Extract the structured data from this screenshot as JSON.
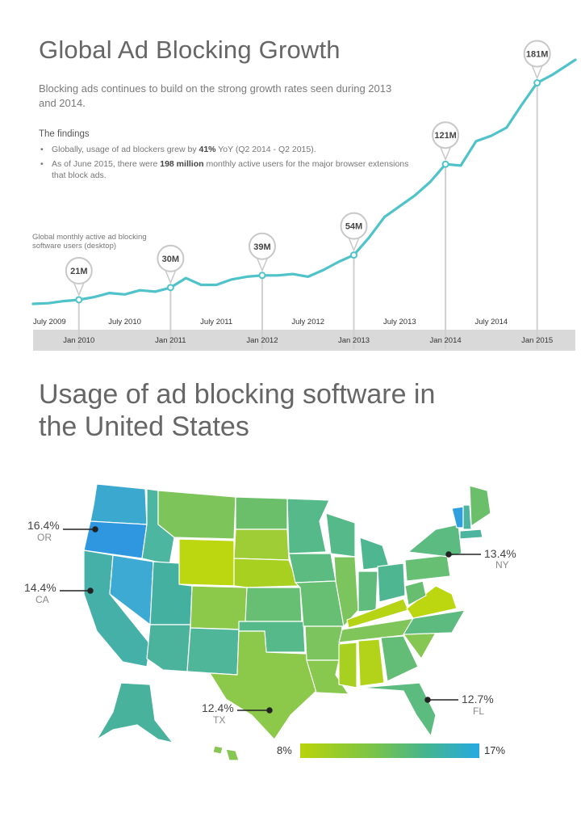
{
  "header": {
    "title": "Global Ad Blocking Growth",
    "subtitle": "Blocking ads continues to build on the strong growth rates seen during 2013 and 2014.",
    "findings_heading": "The findings",
    "finding1_pre": "Globally, usage of ad blockers grew by ",
    "finding1_bold": "41%",
    "finding1_post": " YoY (Q2 2014 - Q2 2015).",
    "finding2_pre": "As of June 2015, there were ",
    "finding2_bold": "198 million",
    "finding2_post": " monthly active users for the major browser extensions that block ads."
  },
  "chart_data": [
    {
      "type": "line",
      "ylabel": "Global monthly active ad blocking software users (desktop)",
      "line_color": "#4fc3c9",
      "x_labels_top": [
        "July 2009",
        "July 2010",
        "July 2011",
        "July 2012",
        "July 2013",
        "July 2014"
      ],
      "x_labels_bottom": [
        "Jan 2010",
        "Jan 2011",
        "Jan 2012",
        "Jan 2013",
        "Jan 2014",
        "Jan 2015"
      ],
      "x": [
        "2009-07",
        "2009-09",
        "2009-11",
        "2010-01",
        "2010-03",
        "2010-05",
        "2010-07",
        "2010-09",
        "2010-11",
        "2011-01",
        "2011-03",
        "2011-05",
        "2011-07",
        "2011-09",
        "2011-11",
        "2012-01",
        "2012-03",
        "2012-05",
        "2012-07",
        "2012-09",
        "2012-11",
        "2013-01",
        "2013-03",
        "2013-05",
        "2013-07",
        "2013-09",
        "2013-11",
        "2014-01",
        "2014-03",
        "2014-05",
        "2014-07",
        "2014-09",
        "2014-11",
        "2015-01",
        "2015-03",
        "2015-06"
      ],
      "values": [
        18,
        18.5,
        20,
        21,
        23,
        26,
        25,
        28,
        27,
        30,
        37,
        32,
        32,
        36,
        38,
        39,
        39,
        40,
        38,
        43,
        49,
        54,
        67,
        82,
        90,
        98,
        108,
        121,
        120,
        138,
        142,
        148,
        165,
        181,
        187,
        198
      ],
      "annotations": [
        {
          "x": "2010-01",
          "label": "21M"
        },
        {
          "x": "2011-01",
          "label": "30M"
        },
        {
          "x": "2012-01",
          "label": "39M"
        },
        {
          "x": "2013-01",
          "label": "54M"
        },
        {
          "x": "2014-01",
          "label": "121M"
        },
        {
          "x": "2015-01",
          "label": "181M"
        }
      ]
    },
    {
      "type": "heatmap",
      "title": "Usage of ad blocking software in the United States",
      "scale_min_label": "8%",
      "scale_max_label": "17%",
      "scale_colors": [
        "#b8d40a",
        "#7cc447",
        "#45b58e",
        "#26a9e0"
      ],
      "highlighted": [
        {
          "state": "OR",
          "value": "16.4%"
        },
        {
          "state": "CA",
          "value": "14.4%"
        },
        {
          "state": "NY",
          "value": "13.4%"
        },
        {
          "state": "FL",
          "value": "12.7%"
        },
        {
          "state": "TX",
          "value": "12.4%"
        }
      ]
    }
  ]
}
